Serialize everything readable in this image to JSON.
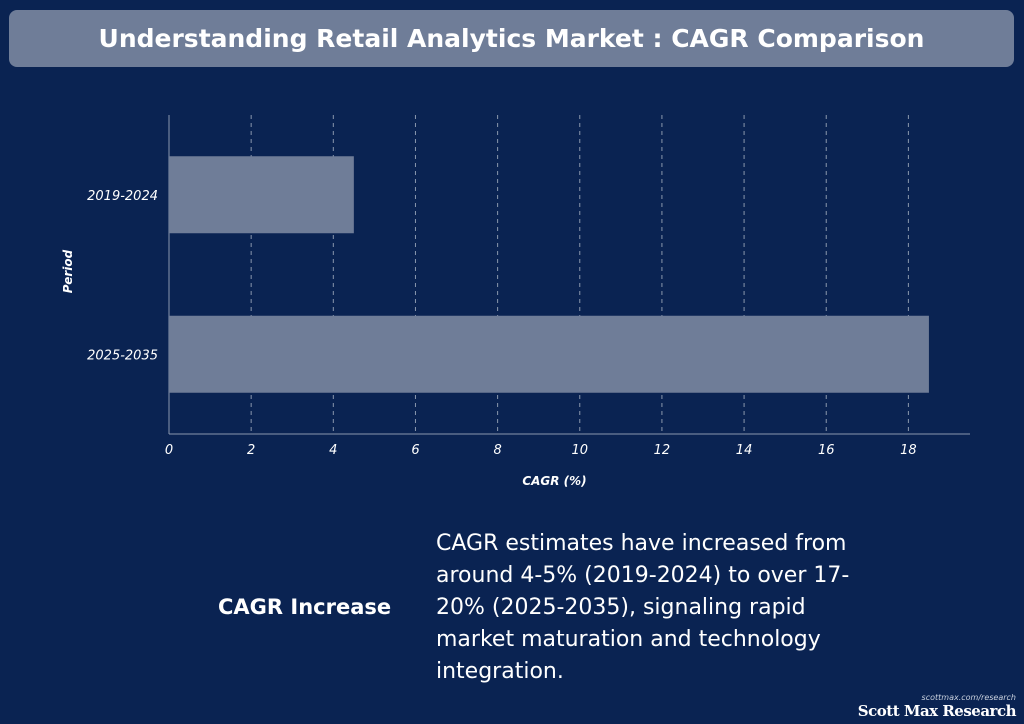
{
  "title": "Understanding Retail Analytics Market : CAGR Comparison",
  "chart_data": {
    "type": "bar",
    "orientation": "horizontal",
    "categories": [
      "2019-2024",
      "2025-2035"
    ],
    "values": [
      4.5,
      18.5
    ],
    "xlabel": "CAGR (%)",
    "ylabel": "Period",
    "xlim": [
      0,
      19.5
    ],
    "xticks": [
      0,
      2,
      4,
      6,
      8,
      10,
      12,
      14,
      16,
      18
    ],
    "grid": true,
    "bar_color": "#6f7d98"
  },
  "insight": {
    "label": "CAGR Increase",
    "text": "CAGR estimates have increased from around 4-5% (2019-2024) to over 17-20% (2025-2035), signaling rapid market maturation and technology integration."
  },
  "footer": {
    "url": "scottmax.com/research",
    "brand": "Scott Max Research"
  },
  "colors": {
    "background": "#0a2352",
    "title_bar": "#6f7d98",
    "bar": "#6f7d98",
    "grid": "#8a97ad",
    "text": "#ffffff"
  }
}
